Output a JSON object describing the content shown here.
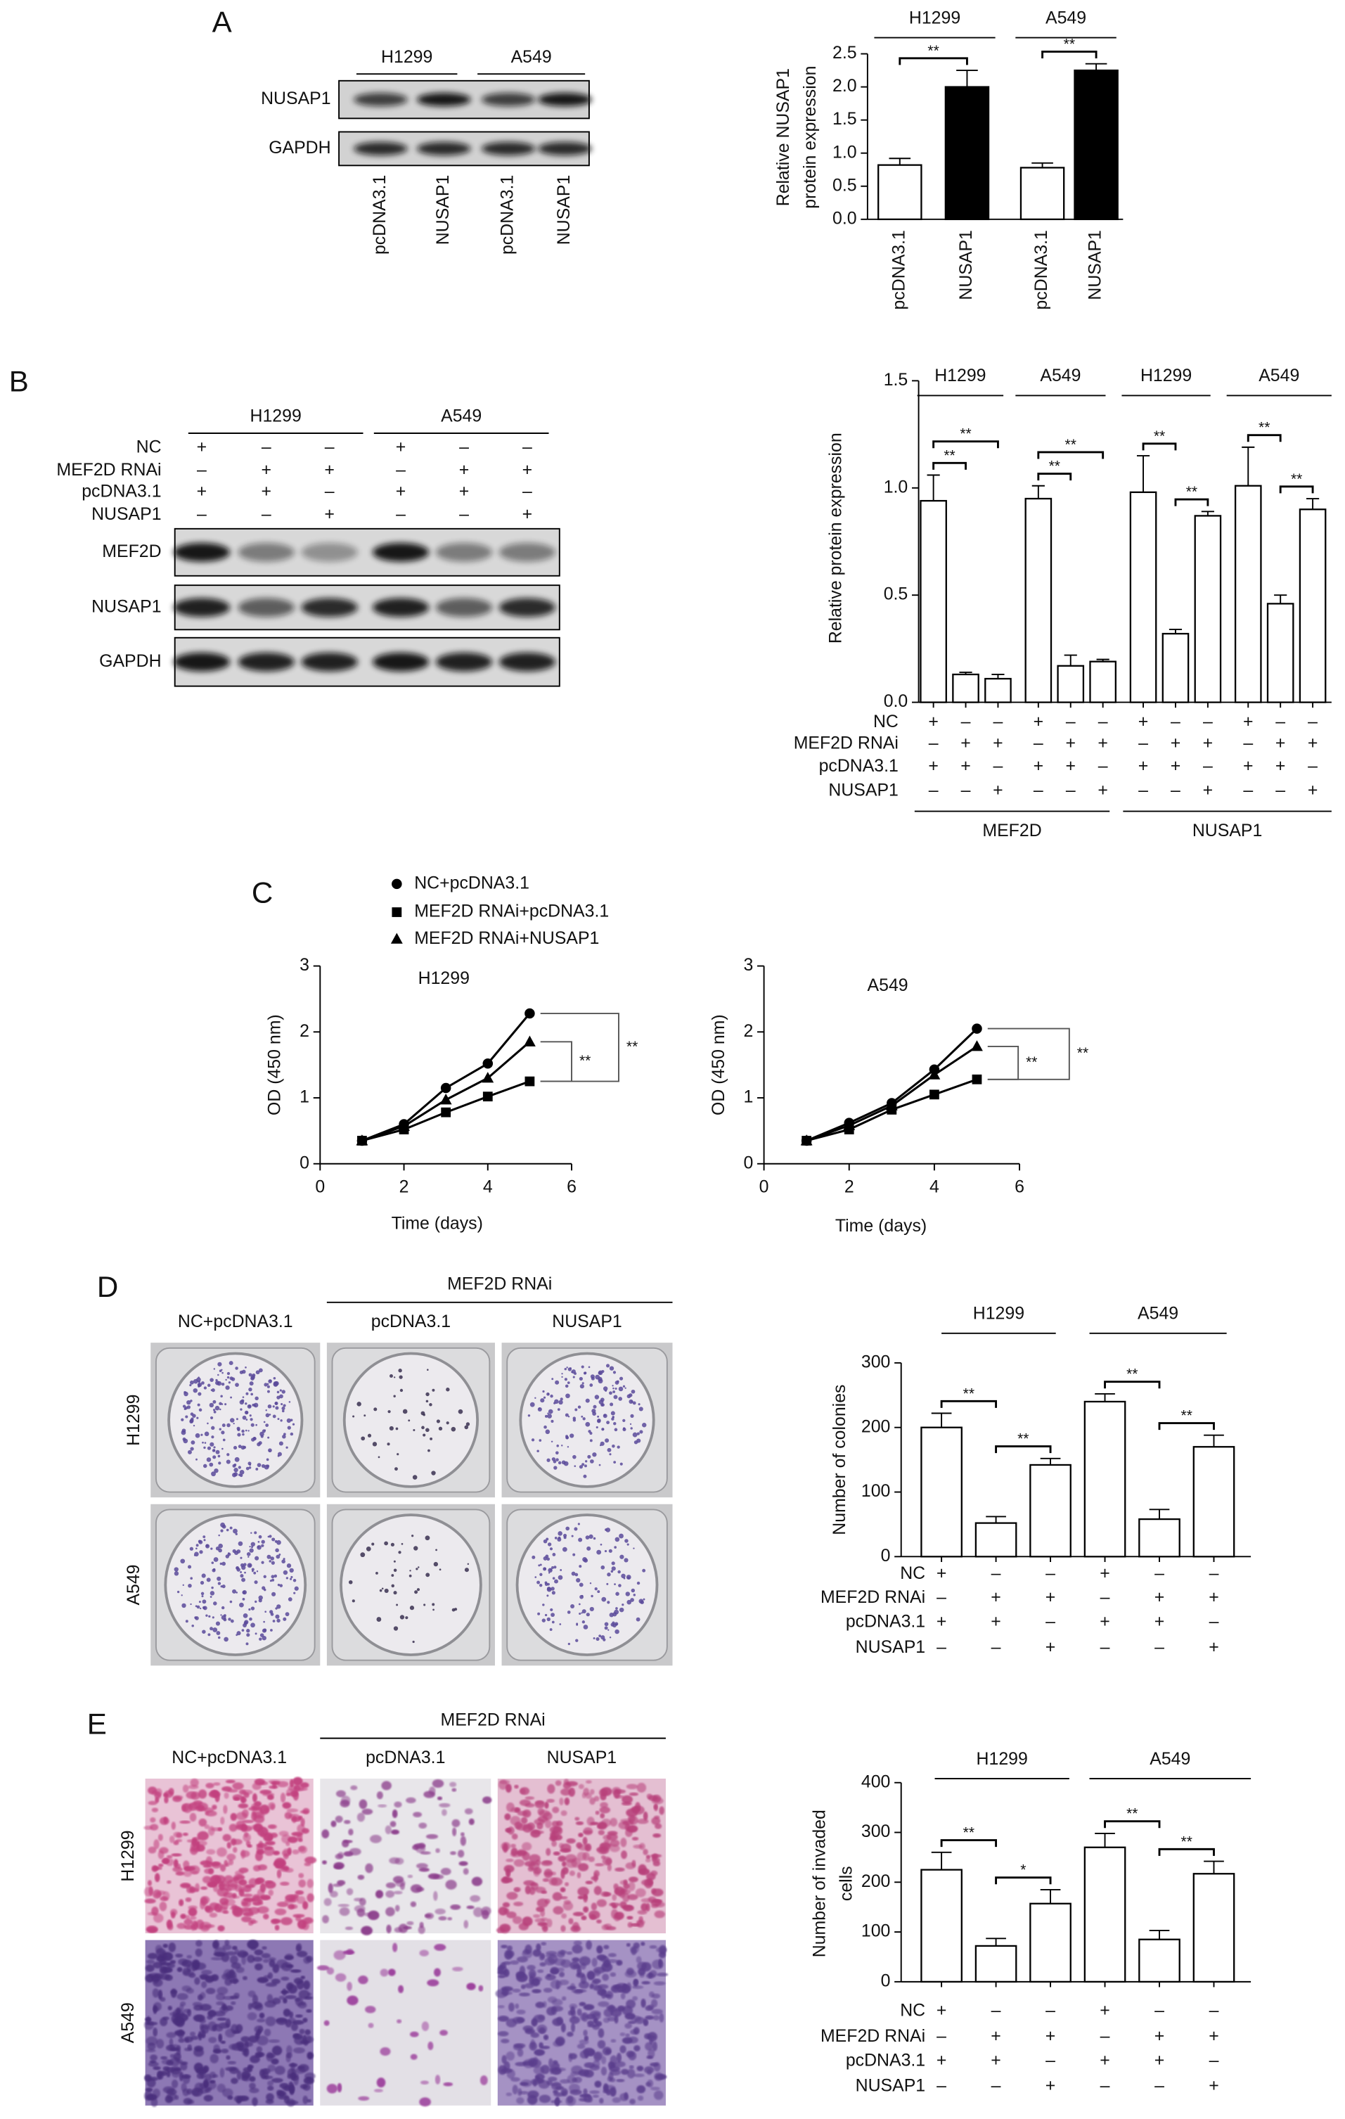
{
  "panel_labels": [
    "A",
    "B",
    "C",
    "D",
    "E"
  ],
  "blots": [
    {
      "groups": [
        "H1299",
        "A549"
      ],
      "rows": [
        "NUSAP1",
        "GAPDH"
      ],
      "lanes": [
        "pcDNA3.1",
        "NUSAP1",
        "pcDNA3.1",
        "NUSAP1"
      ]
    },
    {
      "groups": [
        "H1299",
        "A549"
      ],
      "conditions": [
        {
          "name": "NC",
          "marks": [
            "+",
            "–",
            "–",
            "+",
            "–",
            "–"
          ]
        },
        {
          "name": "MEF2D RNAi",
          "marks": [
            "–",
            "+",
            "+",
            "–",
            "+",
            "+"
          ]
        },
        {
          "name": "pcDNA3.1",
          "marks": [
            "+",
            "+",
            "–",
            "+",
            "+",
            "–"
          ]
        },
        {
          "name": "NUSAP1",
          "marks": [
            "–",
            "–",
            "+",
            "–",
            "–",
            "+"
          ]
        }
      ],
      "rows": [
        "MEF2D",
        "NUSAP1",
        "GAPDH"
      ]
    }
  ],
  "images": [
    {
      "headers": [
        "NC+pcDNA3.1",
        "pcDNA3.1",
        "NUSAP1"
      ],
      "group": "MEF2D RNAi",
      "rows": [
        "H1299",
        "A549"
      ]
    },
    {
      "headers": [
        "NC+pcDNA3.1",
        "pcDNA3.1",
        "NUSAP1"
      ],
      "group": "MEF2D RNAi",
      "rows": [
        "H1299",
        "A549"
      ]
    }
  ],
  "chart_data": [
    {
      "type": "bar",
      "ylabel": [
        "Relative NUSAP1",
        "protein expression"
      ],
      "groups": [
        "H1299",
        "A549"
      ],
      "categories": [
        "pcDNA3.1",
        "NUSAP1",
        "pcDNA3.1",
        "NUSAP1"
      ],
      "values": [
        0.82,
        2.0,
        0.78,
        2.25
      ],
      "errors": [
        0.1,
        0.25,
        0.07,
        0.1
      ],
      "colors": [
        "#ffffff",
        "#000000",
        "#ffffff",
        "#000000"
      ],
      "ylim": [
        0,
        2.5
      ],
      "yticks": [
        {
          "value": 0,
          "label": "0.0"
        },
        0.5,
        {
          "value": 1,
          "label": "1.0"
        },
        1.5,
        {
          "value": 2,
          "label": "2.0"
        },
        2.5
      ],
      "significance": [
        "**",
        "**"
      ]
    },
    {
      "type": "bar",
      "ylabel": "Relative protein expression",
      "groups": [
        "H1299",
        "A549",
        "H1299",
        "A549"
      ],
      "supergroups": [
        "MEF2D",
        "NUSAP1"
      ],
      "conditions": [
        {
          "name": "NC",
          "marks": [
            "+",
            "–",
            "–",
            "+",
            "–",
            "–",
            "+",
            "–",
            "–",
            "+",
            "–",
            "–"
          ]
        },
        {
          "name": "MEF2D RNAi",
          "marks": [
            "–",
            "+",
            "+",
            "–",
            "+",
            "+",
            "–",
            "+",
            "+",
            "–",
            "+",
            "+"
          ]
        },
        {
          "name": "pcDNA3.1",
          "marks": [
            "+",
            "+",
            "–",
            "+",
            "+",
            "–",
            "+",
            "+",
            "–",
            "+",
            "+",
            "–"
          ]
        },
        {
          "name": "NUSAP1",
          "marks": [
            "–",
            "–",
            "+",
            "–",
            "–",
            "+",
            "–",
            "–",
            "+",
            "–",
            "–",
            "+"
          ]
        }
      ],
      "values": [
        0.94,
        0.13,
        0.11,
        0.95,
        0.17,
        0.19,
        0.98,
        0.32,
        0.87,
        1.01,
        0.46,
        0.9
      ],
      "errors": [
        0.12,
        0.01,
        0.02,
        0.06,
        0.05,
        0.01,
        0.17,
        0.02,
        0.02,
        0.18,
        0.04,
        0.05
      ],
      "color": "#ffffff",
      "ylim": [
        0,
        1.5
      ],
      "yticks": [
        {
          "value": 0,
          "label": "0.0"
        },
        0.5,
        {
          "value": 1,
          "label": "1.0"
        },
        1.5
      ],
      "significance": [
        "**",
        "**",
        "**",
        "**",
        "**",
        "**",
        "**",
        "**"
      ]
    },
    {
      "type": "line",
      "subtitle": "H1299",
      "xlabel": "Time (days)",
      "ylabel": "OD (450 nm)",
      "x": [
        1,
        2,
        3,
        4,
        5
      ],
      "xlim": [
        0,
        6
      ],
      "xticks": [
        0,
        2,
        4,
        6
      ],
      "ylim": [
        0,
        3
      ],
      "yticks": [
        0,
        1,
        2,
        3
      ],
      "series": [
        {
          "name": "NC+pcDNA3.1",
          "color": "#000000",
          "marker": "circle",
          "values": [
            0.35,
            0.6,
            1.15,
            1.52,
            2.28
          ]
        },
        {
          "name": "MEF2D RNAi+pcDNA3.1",
          "color": "#000000",
          "marker": "square",
          "values": [
            0.35,
            0.52,
            0.78,
            1.02,
            1.25
          ]
        },
        {
          "name": "MEF2D RNAi+NUSAP1",
          "color": "#000000",
          "marker": "triangle",
          "values": [
            0.35,
            0.57,
            0.97,
            1.3,
            1.85
          ]
        }
      ],
      "significance": [
        "**",
        "**"
      ]
    },
    {
      "type": "line",
      "subtitle": "A549",
      "xlabel": "Time (days)",
      "ylabel": "OD (450 nm)",
      "x": [
        1,
        2,
        3,
        4,
        5
      ],
      "xlim": [
        0,
        6
      ],
      "xticks": [
        0,
        2,
        4,
        6
      ],
      "ylim": [
        0,
        3
      ],
      "yticks": [
        0,
        1,
        2,
        3
      ],
      "series": [
        {
          "color": "#000000",
          "marker": "circle",
          "values": [
            0.35,
            0.62,
            0.92,
            1.43,
            2.05
          ]
        },
        {
          "color": "#000000",
          "marker": "square",
          "values": [
            0.35,
            0.52,
            0.82,
            1.05,
            1.28
          ]
        },
        {
          "color": "#000000",
          "marker": "triangle",
          "values": [
            0.35,
            0.58,
            0.88,
            1.35,
            1.78
          ]
        }
      ],
      "significance": [
        "**",
        "**"
      ]
    },
    {
      "type": "bar",
      "ylabel": "Number of colonies",
      "groups": [
        "H1299",
        "A549"
      ],
      "conditions": [
        {
          "name": "NC",
          "marks": [
            "+",
            "–",
            "–",
            "+",
            "–",
            "–"
          ]
        },
        {
          "name": "MEF2D RNAi",
          "marks": [
            "–",
            "+",
            "+",
            "–",
            "+",
            "+"
          ]
        },
        {
          "name": "pcDNA3.1",
          "marks": [
            "+",
            "+",
            "–",
            "+",
            "+",
            "–"
          ]
        },
        {
          "name": "NUSAP1",
          "marks": [
            "–",
            "–",
            "+",
            "–",
            "–",
            "+"
          ]
        }
      ],
      "values": [
        200,
        52,
        142,
        240,
        58,
        170
      ],
      "errors": [
        22,
        10,
        10,
        12,
        15,
        18
      ],
      "color": "#ffffff",
      "ylim": [
        0,
        300
      ],
      "yticks": [
        0,
        100,
        200,
        300
      ],
      "significance": [
        "**",
        "**",
        "**",
        "**"
      ]
    },
    {
      "type": "bar",
      "ylabel": [
        "Number of invaded",
        "cells"
      ],
      "groups": [
        "H1299",
        "A549"
      ],
      "conditions": [
        {
          "name": "NC",
          "marks": [
            "+",
            "–",
            "–",
            "+",
            "–",
            "–"
          ]
        },
        {
          "name": "MEF2D RNAi",
          "marks": [
            "–",
            "+",
            "+",
            "–",
            "+",
            "+"
          ]
        },
        {
          "name": "pcDNA3.1",
          "marks": [
            "+",
            "+",
            "–",
            "+",
            "+",
            "–"
          ]
        },
        {
          "name": "NUSAP1",
          "marks": [
            "–",
            "–",
            "+",
            "–",
            "–",
            "+"
          ]
        }
      ],
      "values": [
        225,
        72,
        157,
        270,
        85,
        217
      ],
      "errors": [
        35,
        15,
        28,
        28,
        18,
        25
      ],
      "color": "#ffffff",
      "ylim": [
        0,
        400
      ],
      "yticks": [
        0,
        100,
        200,
        300,
        400
      ],
      "significance": [
        "**",
        "*",
        "**",
        "**"
      ]
    }
  ]
}
